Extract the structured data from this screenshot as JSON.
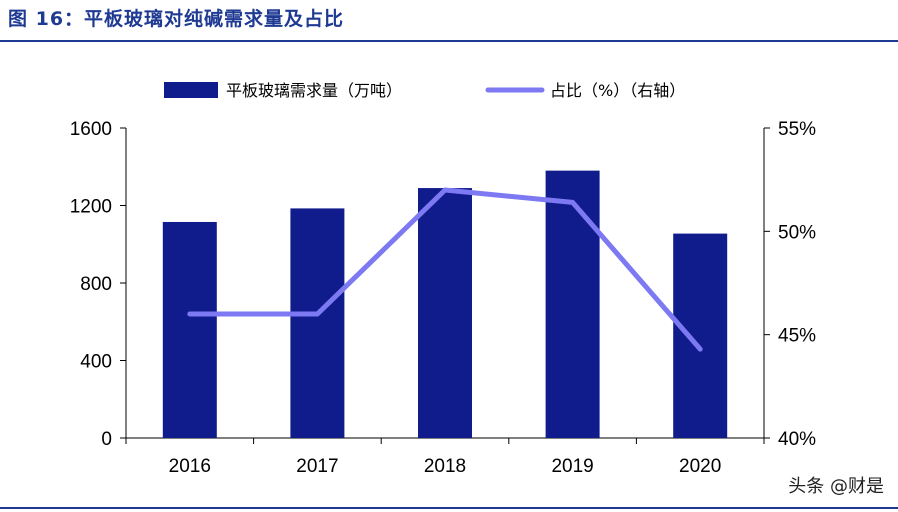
{
  "figure_title": "图 16：平板玻璃对纯碱需求量及占比",
  "watermark": "头条 @财是",
  "colors": {
    "title": "#1f3a93",
    "bar": "#111c8c",
    "line": "#7d79f2",
    "axis": "#000000"
  },
  "chart_data": {
    "type": "bar",
    "title": "",
    "categories": [
      "2016",
      "2017",
      "2018",
      "2019",
      "2020"
    ],
    "series": [
      {
        "name": "平板玻璃需求量（万吨）",
        "type": "bar",
        "axis": "left",
        "values": [
          1115,
          1185,
          1290,
          1380,
          1055
        ]
      },
      {
        "name": "占比（%）（右轴）",
        "type": "line",
        "axis": "right",
        "values": [
          46.0,
          46.0,
          52.0,
          51.4,
          44.3
        ]
      }
    ],
    "y_left": {
      "min": 0,
      "max": 1600,
      "ticks": [
        0,
        400,
        800,
        1200,
        1600
      ],
      "tick_labels": [
        "0",
        "400",
        "800",
        "1200",
        "1600"
      ]
    },
    "y_right": {
      "min": 40,
      "max": 55,
      "ticks": [
        40,
        45,
        50,
        55
      ],
      "tick_labels": [
        "40%",
        "45%",
        "50%",
        "55%"
      ]
    },
    "legend_position": "top",
    "grid": false
  }
}
